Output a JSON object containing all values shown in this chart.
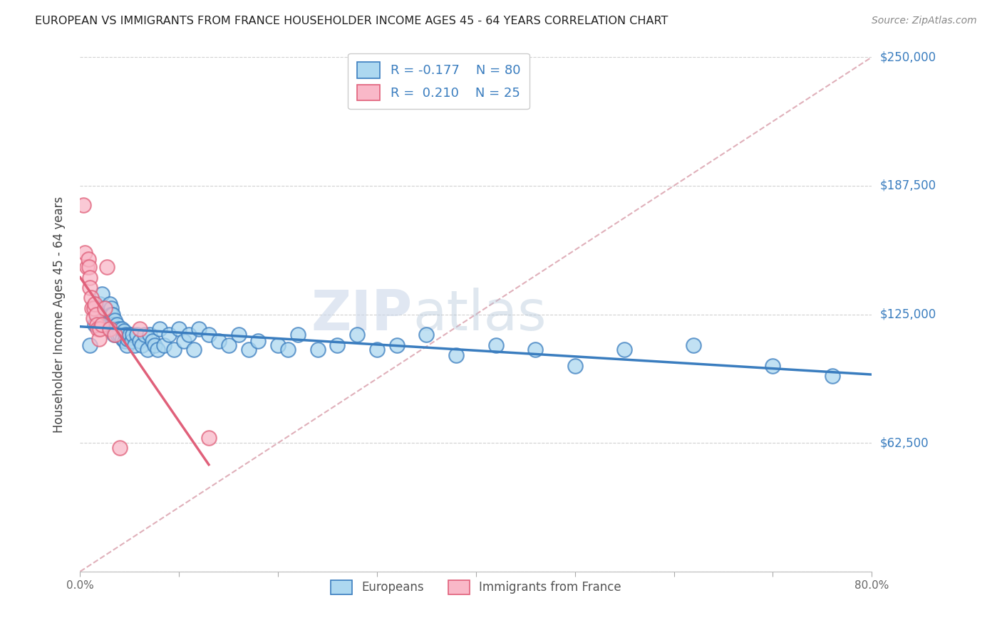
{
  "title": "EUROPEAN VS IMMIGRANTS FROM FRANCE HOUSEHOLDER INCOME AGES 45 - 64 YEARS CORRELATION CHART",
  "source": "Source: ZipAtlas.com",
  "ylabel": "Householder Income Ages 45 - 64 years",
  "xlim": [
    0.0,
    0.8
  ],
  "ylim": [
    0,
    250000
  ],
  "yticks": [
    0,
    62500,
    125000,
    187500,
    250000
  ],
  "ytick_labels": [
    "",
    "$62,500",
    "$125,000",
    "$187,500",
    "$250,000"
  ],
  "xticks": [
    0.0,
    0.1,
    0.2,
    0.3,
    0.4,
    0.5,
    0.6,
    0.7,
    0.8
  ],
  "blue_R": -0.177,
  "blue_N": 80,
  "pink_R": 0.21,
  "pink_N": 25,
  "blue_color": "#add8f0",
  "pink_color": "#f9b8c8",
  "blue_line_color": "#3a7dbf",
  "pink_line_color": "#e0607a",
  "dashed_line_color": "#e0b0ba",
  "watermark_zip": "ZIP",
  "watermark_atlas": "atlas",
  "blue_scatter_x": [
    0.01,
    0.015,
    0.018,
    0.02,
    0.022,
    0.022,
    0.024,
    0.025,
    0.026,
    0.027,
    0.028,
    0.028,
    0.029,
    0.03,
    0.03,
    0.031,
    0.031,
    0.032,
    0.033,
    0.033,
    0.034,
    0.034,
    0.035,
    0.036,
    0.037,
    0.038,
    0.039,
    0.04,
    0.042,
    0.043,
    0.044,
    0.045,
    0.046,
    0.047,
    0.048,
    0.05,
    0.052,
    0.053,
    0.055,
    0.057,
    0.06,
    0.062,
    0.065,
    0.068,
    0.07,
    0.073,
    0.075,
    0.078,
    0.08,
    0.085,
    0.09,
    0.095,
    0.1,
    0.105,
    0.11,
    0.115,
    0.12,
    0.13,
    0.14,
    0.15,
    0.16,
    0.17,
    0.18,
    0.2,
    0.21,
    0.22,
    0.24,
    0.26,
    0.28,
    0.3,
    0.32,
    0.35,
    0.38,
    0.42,
    0.46,
    0.5,
    0.55,
    0.62,
    0.7,
    0.76
  ],
  "blue_scatter_y": [
    110000,
    120000,
    125000,
    130000,
    128000,
    135000,
    125000,
    128000,
    125000,
    127000,
    125000,
    122000,
    120000,
    130000,
    125000,
    128000,
    125000,
    120000,
    125000,
    120000,
    118000,
    115000,
    122000,
    118000,
    120000,
    115000,
    118000,
    115000,
    118000,
    113000,
    117000,
    112000,
    115000,
    110000,
    113000,
    115000,
    112000,
    115000,
    110000,
    115000,
    112000,
    110000,
    115000,
    108000,
    115000,
    112000,
    110000,
    108000,
    118000,
    110000,
    115000,
    108000,
    118000,
    112000,
    115000,
    108000,
    118000,
    115000,
    112000,
    110000,
    115000,
    108000,
    112000,
    110000,
    108000,
    115000,
    108000,
    110000,
    115000,
    108000,
    110000,
    115000,
    105000,
    110000,
    108000,
    100000,
    108000,
    110000,
    100000,
    95000
  ],
  "pink_scatter_x": [
    0.003,
    0.005,
    0.007,
    0.008,
    0.009,
    0.01,
    0.01,
    0.011,
    0.012,
    0.013,
    0.014,
    0.015,
    0.016,
    0.017,
    0.018,
    0.019,
    0.02,
    0.022,
    0.025,
    0.027,
    0.03,
    0.035,
    0.04,
    0.06,
    0.13
  ],
  "pink_scatter_y": [
    178000,
    155000,
    148000,
    152000,
    148000,
    143000,
    138000,
    133000,
    128000,
    123000,
    128000,
    130000,
    125000,
    120000,
    118000,
    113000,
    118000,
    120000,
    128000,
    148000,
    118000,
    115000,
    60000,
    118000,
    65000
  ]
}
